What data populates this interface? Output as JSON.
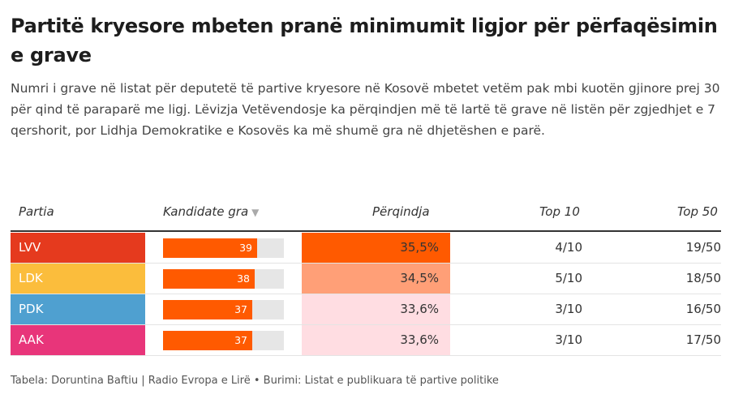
{
  "title": "Partitë kryesore mbeten pranë minimumit ligjor për përfaqësimin e grave",
  "subtitle": "Numri i grave në listat për deputetë të partive kryesore në Kosovë mbetet vetëm pak mbi kuotën gjinore prej 30 për qind të paraparë me ligj. Lëvizja Vetëvendosje ka përqindjen më të lartë të grave në listën për zgjedhjet e 7 qershorit, por Lidhja Demokratike e Kosovës ka më shumë gra në dhjetëshen e parë.",
  "headers": {
    "party": "Partia",
    "candidates": "Kandidate gra",
    "sort_icon": "▼",
    "percent": "Përqindja",
    "top10": "Top 10",
    "top50": "Top 50"
  },
  "footer": "Tabela: Doruntina Baftiu | Radio Evropa e Lirë • Burimi: Listat e publikuara të partive politike",
  "colors": {
    "bar": "#ff5a00",
    "bar_track": "#e6e6e6",
    "pct_scale": [
      "#ffdde2",
      "#ff5a00"
    ]
  },
  "chart_data": {
    "type": "table",
    "columns": [
      "Partia",
      "Kandidate gra",
      "Përqindja",
      "Top 10",
      "Top 50"
    ],
    "bar_max": 50,
    "rows": [
      {
        "party": "LVV",
        "party_color": "#e53a1e",
        "candidates": 39,
        "percent": 35.5,
        "percent_label": "35,5%",
        "top10": "4/10",
        "top50": "19/50"
      },
      {
        "party": "LDK",
        "party_color": "#fbbd3c",
        "candidates": 38,
        "percent": 34.5,
        "percent_label": "34,5%",
        "top10": "5/10",
        "top50": "18/50"
      },
      {
        "party": "PDK",
        "party_color": "#4fa0d0",
        "candidates": 37,
        "percent": 33.6,
        "percent_label": "33,6%",
        "top10": "3/10",
        "top50": "16/50"
      },
      {
        "party": "AAK",
        "party_color": "#e8357a",
        "candidates": 37,
        "percent": 33.6,
        "percent_label": "33,6%",
        "top10": "3/10",
        "top50": "17/50"
      }
    ]
  }
}
